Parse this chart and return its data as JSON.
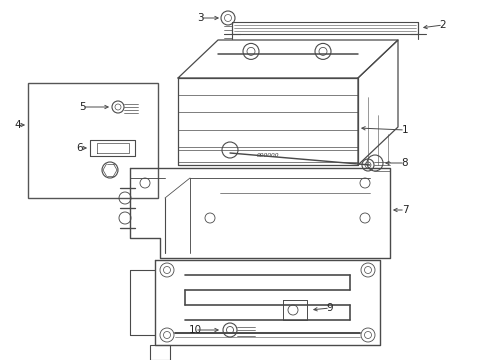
{
  "bg_color": "#ffffff",
  "lc": "#4a4a4a",
  "lw": 0.8,
  "fig_w": 4.9,
  "fig_h": 3.6,
  "dpi": 100,
  "label_fs": 7.5,
  "label_color": "#222222"
}
